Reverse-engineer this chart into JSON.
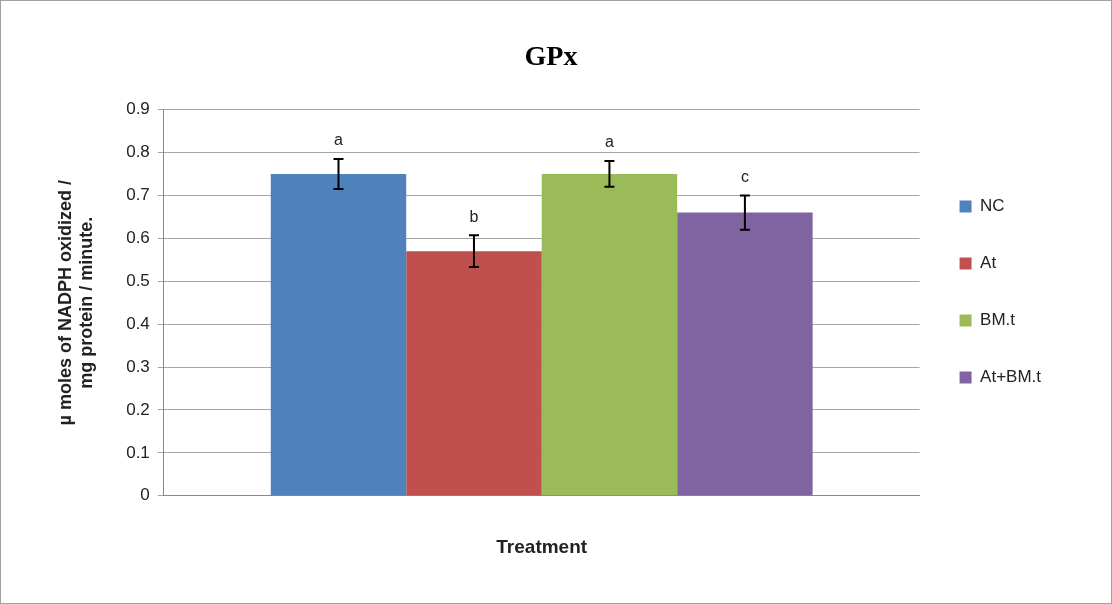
{
  "chart_data": {
    "type": "bar",
    "title": "GPx",
    "xlabel": "Treatment",
    "ylabel": "µ moles of NADPH oxidized /\nmg protein / minute.",
    "categories": [
      null
    ],
    "series": [
      {
        "name": "NC",
        "color": "#4f81bd",
        "values": [
          0.75
        ],
        "errors": [
          0.035
        ]
      },
      {
        "name": "At",
        "color": "#c0504d",
        "values": [
          0.57
        ],
        "errors": [
          0.037
        ]
      },
      {
        "name": "BM.t",
        "color": "#9bbb59",
        "values": [
          0.75
        ],
        "errors": [
          0.03
        ]
      },
      {
        "name": "At+BM.t",
        "color": "#8064a2",
        "values": [
          0.66
        ],
        "errors": [
          0.04
        ]
      }
    ],
    "annotations": [
      "a",
      "b",
      "a",
      "c"
    ],
    "ylim": [
      0,
      0.9
    ],
    "yticks": [
      0,
      0.1,
      0.2,
      0.3,
      0.4,
      0.5,
      0.6,
      0.7,
      0.8,
      0.9
    ],
    "grid": "y",
    "legend": "right"
  }
}
